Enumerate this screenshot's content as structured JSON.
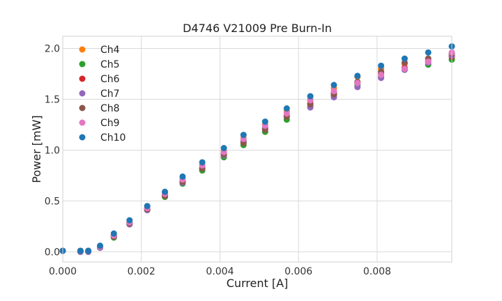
{
  "chart_data": {
    "type": "scatter",
    "title": "D4746 V21009 Pre Burn-In",
    "xlabel": "Current [A]",
    "ylabel": "Power [mW]",
    "xlim": [
      0,
      0.0099
    ],
    "ylim": [
      -0.1,
      2.12
    ],
    "x_ticks": [
      0.0,
      0.002,
      0.004,
      0.006,
      0.008
    ],
    "x_tick_labels": [
      "0.000",
      "0.002",
      "0.004",
      "0.006",
      "0.008"
    ],
    "y_ticks": [
      0.0,
      0.5,
      1.0,
      1.5,
      2.0
    ],
    "y_tick_labels": [
      "0.0",
      "0.5",
      "1.0",
      "1.5",
      "2.0"
    ],
    "grid": true,
    "legend_position": "top-left",
    "x": [
      0.0,
      0.00045,
      0.00065,
      0.00095,
      0.0013,
      0.0017,
      0.00215,
      0.0026,
      0.00305,
      0.00355,
      0.0041,
      0.0046,
      0.00515,
      0.0057,
      0.0063,
      0.0069,
      0.0075,
      0.0081,
      0.0087,
      0.0093,
      0.0099
    ],
    "series": [
      {
        "name": "Ch4",
        "color": "#ff7f0e",
        "values": [
          0.01,
          0.01,
          0.01,
          0.05,
          0.16,
          0.29,
          0.43,
          0.57,
          0.71,
          0.85,
          0.99,
          1.12,
          1.25,
          1.38,
          1.5,
          1.61,
          1.72,
          1.8,
          1.85,
          1.88,
          1.94
        ]
      },
      {
        "name": "Ch5",
        "color": "#2ca02c",
        "values": [
          0.01,
          0.0,
          0.0,
          0.04,
          0.14,
          0.27,
          0.41,
          0.54,
          0.67,
          0.8,
          0.93,
          1.05,
          1.18,
          1.3,
          1.43,
          1.54,
          1.64,
          1.72,
          1.79,
          1.84,
          1.89
        ]
      },
      {
        "name": "Ch6",
        "color": "#d62728",
        "values": [
          0.01,
          0.01,
          0.01,
          0.05,
          0.15,
          0.28,
          0.42,
          0.56,
          0.69,
          0.82,
          0.96,
          1.08,
          1.21,
          1.34,
          1.46,
          1.56,
          1.66,
          1.75,
          1.81,
          1.87,
          1.92
        ]
      },
      {
        "name": "Ch7",
        "color": "#9467bd",
        "values": [
          0.01,
          0.0,
          0.0,
          0.04,
          0.15,
          0.27,
          0.41,
          0.55,
          0.68,
          0.82,
          0.95,
          1.09,
          1.22,
          1.33,
          1.42,
          1.52,
          1.62,
          1.71,
          1.79,
          1.86,
          1.93
        ]
      },
      {
        "name": "Ch8",
        "color": "#8c564b",
        "values": [
          0.01,
          0.01,
          0.01,
          0.05,
          0.15,
          0.28,
          0.42,
          0.55,
          0.69,
          0.82,
          0.96,
          1.07,
          1.2,
          1.33,
          1.45,
          1.55,
          1.67,
          1.77,
          1.86,
          1.9,
          1.95
        ]
      },
      {
        "name": "Ch9",
        "color": "#e377c2",
        "values": [
          0.01,
          0.01,
          0.01,
          0.05,
          0.16,
          0.29,
          0.43,
          0.57,
          0.71,
          0.85,
          0.98,
          1.11,
          1.24,
          1.36,
          1.49,
          1.58,
          1.66,
          1.74,
          1.8,
          1.87,
          1.96
        ]
      },
      {
        "name": "Ch10",
        "color": "#1f77b4",
        "values": [
          0.01,
          0.01,
          0.01,
          0.06,
          0.18,
          0.31,
          0.45,
          0.59,
          0.74,
          0.88,
          1.02,
          1.15,
          1.28,
          1.41,
          1.53,
          1.64,
          1.73,
          1.83,
          1.9,
          1.96,
          2.02
        ]
      }
    ]
  }
}
